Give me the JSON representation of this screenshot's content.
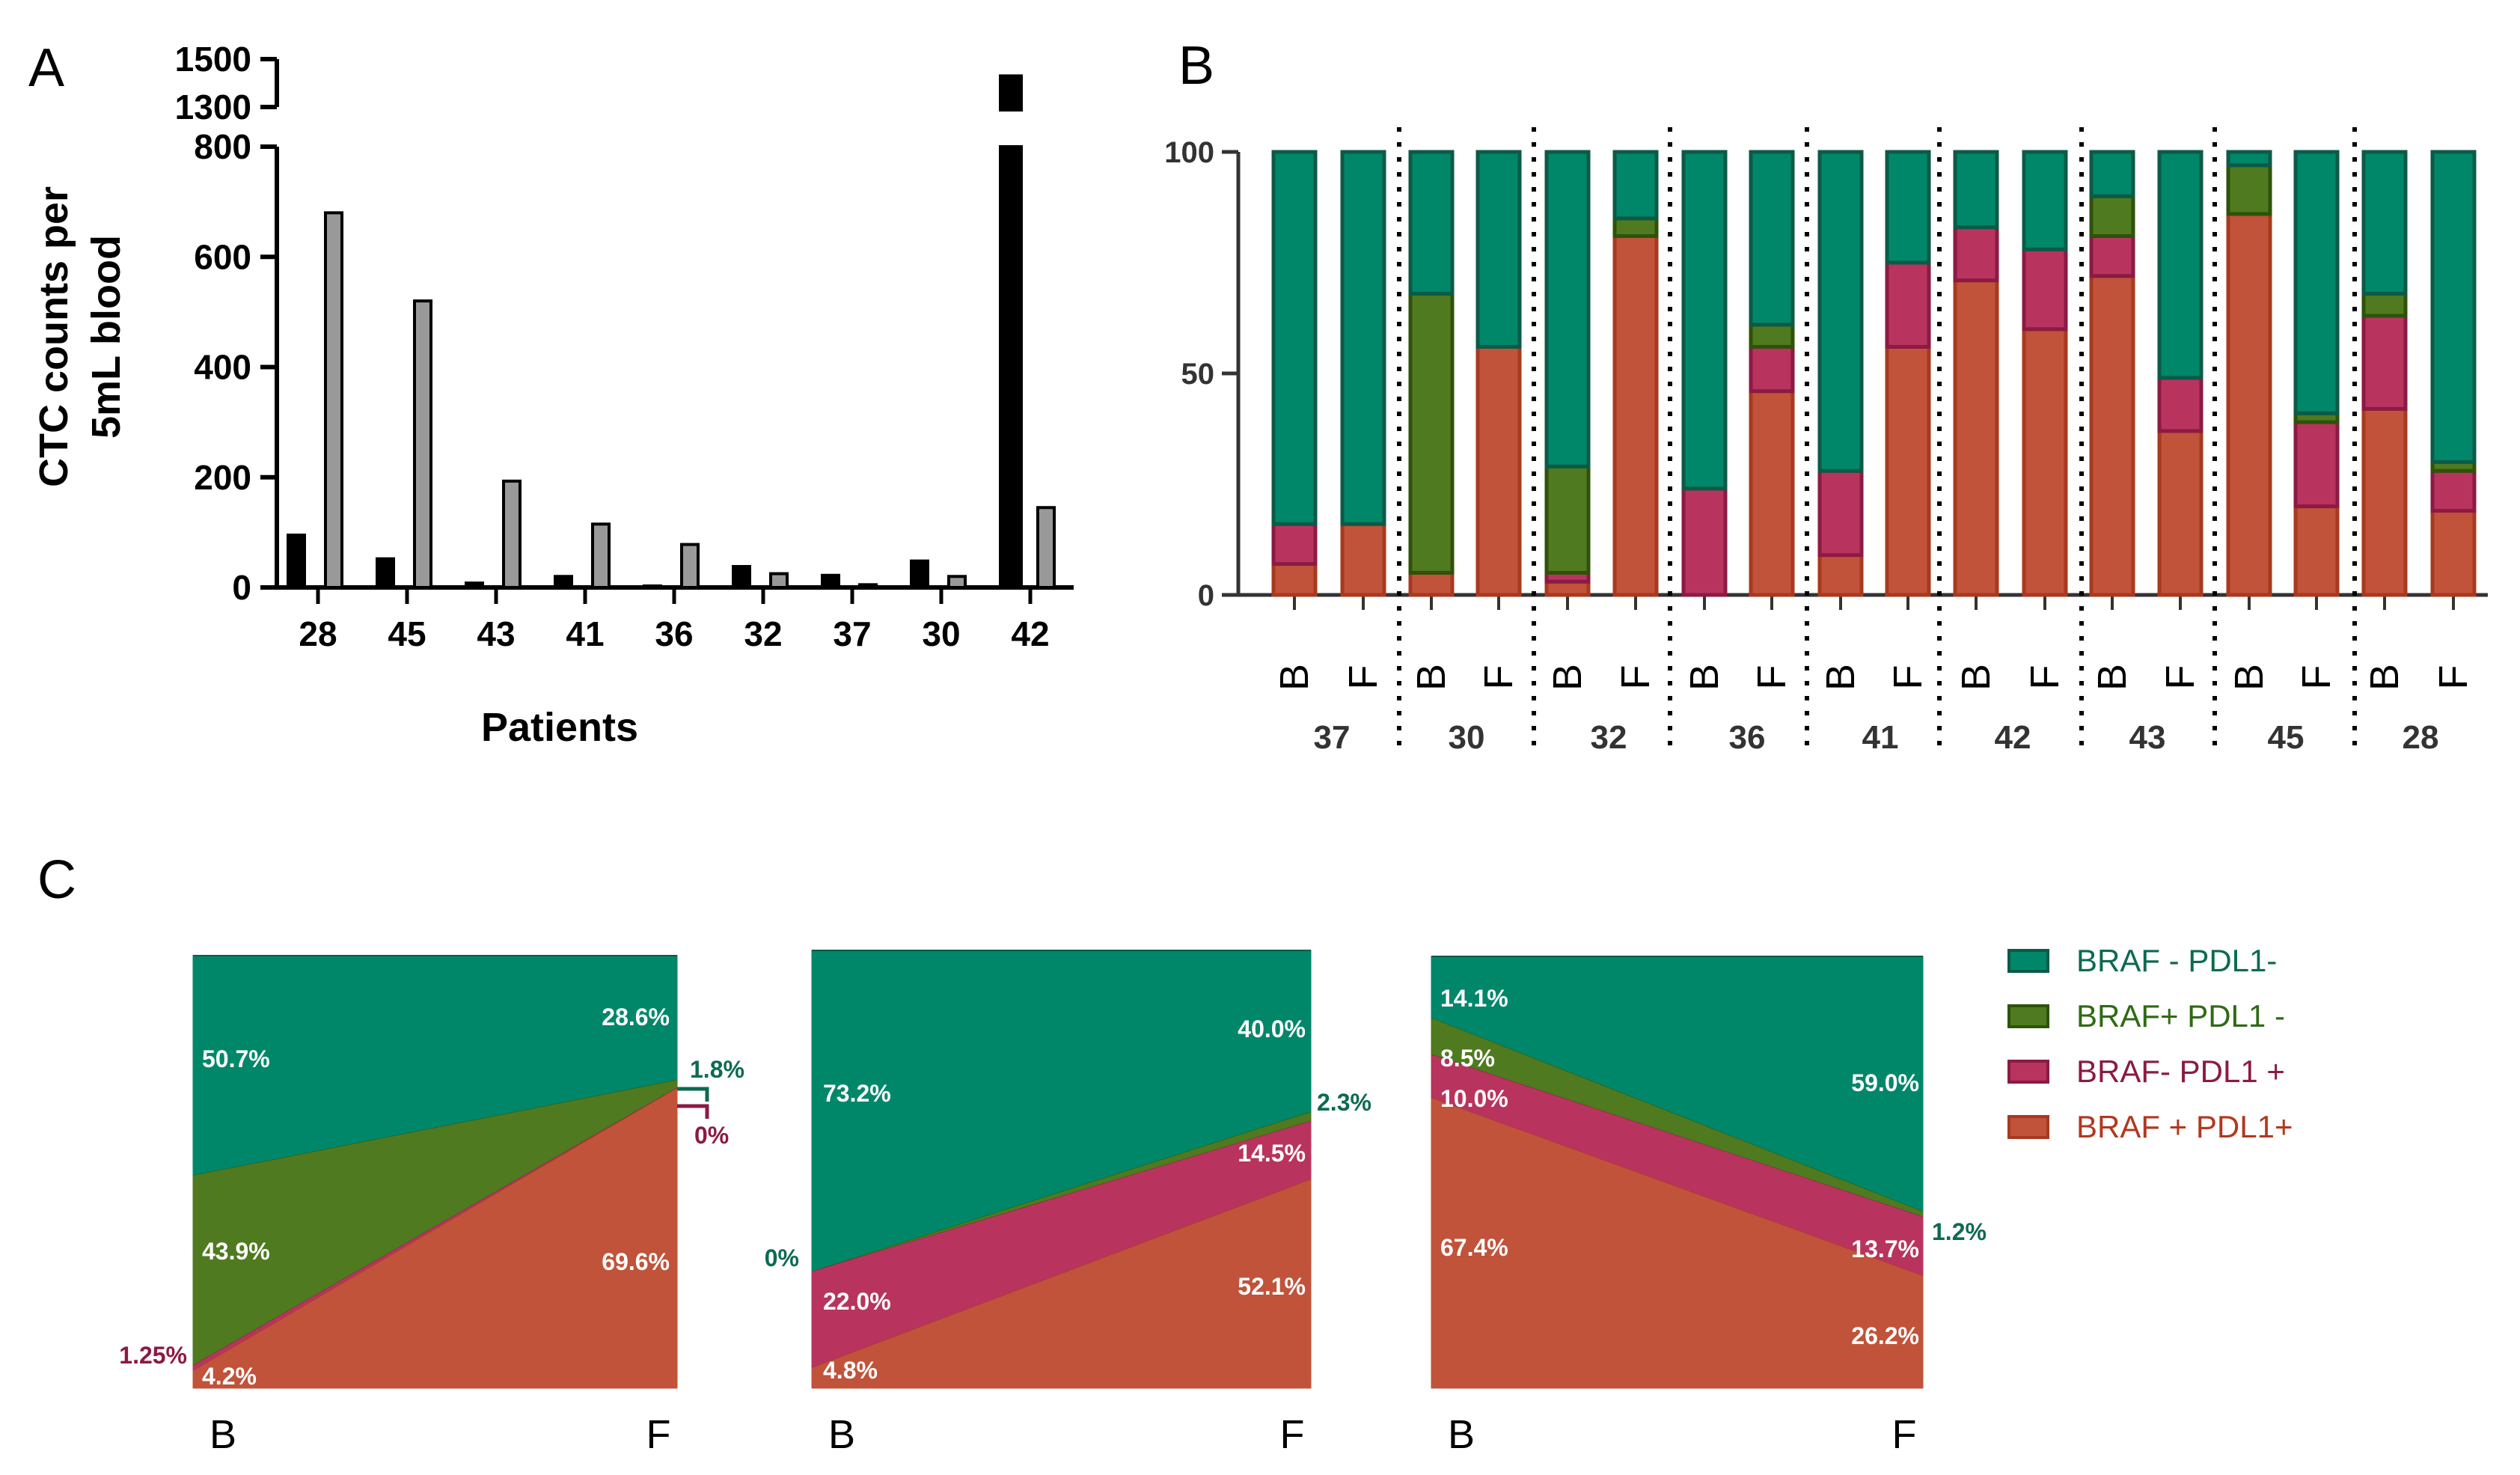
{
  "colors": {
    "teal": "#00876a",
    "green": "#4f7a1f",
    "magenta": "#b8345e",
    "orange": "#c0533a",
    "teal_border": "#0c5a46",
    "green_border": "#2f520a",
    "magenta_border": "#8b1a44",
    "orange_border": "#a8391f",
    "label_teal": "#0c6a52",
    "label_magenta": "#8b1a44",
    "legend_text_teal": "#0c6a52",
    "legend_text_green": "#2f6a14",
    "legend_text_magenta": "#8b1a44",
    "legend_text_orange": "#b0391f"
  },
  "panel_letters": {
    "a": "A",
    "b": "B",
    "c": "C"
  },
  "chart_data": [
    {
      "id": "A",
      "type": "bar",
      "title": "",
      "xlabel": "Patients",
      "ylabel": "CTC counts per 5mL blood",
      "ylabel_lines": [
        "CTC counts per",
        "5mL blood"
      ],
      "y_ticks_lower": [
        0,
        200,
        400,
        600,
        800
      ],
      "y_ticks_upper": [
        1300,
        1500
      ],
      "ylim_lower": [
        0,
        800
      ],
      "ylim_upper": [
        1300,
        1500
      ],
      "categories": [
        "28",
        "45",
        "43",
        "41",
        "36",
        "32",
        "37",
        "30",
        "42"
      ],
      "series": [
        {
          "name": "B",
          "color": "#000000",
          "values": [
            95,
            52,
            8,
            20,
            0,
            38,
            22,
            48,
            1430
          ]
        },
        {
          "name": "F",
          "color": "#999999",
          "values": [
            680,
            520,
            193,
            115,
            78,
            25,
            5,
            20,
            145
          ]
        }
      ]
    },
    {
      "id": "B",
      "type": "bar",
      "stacked": true,
      "ylim": [
        0,
        100
      ],
      "y_ticks": [
        0,
        50,
        100
      ],
      "timepoint_labels": [
        "B",
        "F"
      ],
      "patients": [
        "37",
        "30",
        "32",
        "36",
        "41",
        "42",
        "43",
        "45",
        "28"
      ],
      "series": [
        {
          "name": "BRAF + PDL1+",
          "color": "#c0533a",
          "values": [
            7,
            16,
            5,
            56,
            3,
            81,
            0,
            46,
            9,
            56,
            71,
            60,
            72,
            37,
            86,
            20,
            42,
            19
          ]
        },
        {
          "name": "BRAF- PDL1 +",
          "color": "#b8345e",
          "values": [
            9,
            0,
            0,
            0,
            2,
            0,
            24,
            10,
            19,
            19,
            12,
            18,
            9,
            12,
            0,
            19,
            21,
            9
          ]
        },
        {
          "name": "BRAF+ PDL1 -",
          "color": "#4f7a1f",
          "values": [
            0,
            0,
            63,
            0,
            24,
            4,
            0,
            5,
            0,
            0,
            0,
            0,
            9,
            0,
            11,
            2,
            5,
            2
          ]
        },
        {
          "name": "BRAF - PDL1-",
          "color": "#00876a",
          "values": [
            84,
            84,
            32,
            44,
            71,
            15,
            76,
            39,
            72,
            25,
            17,
            22,
            10,
            51,
            3,
            59,
            32,
            70
          ]
        }
      ]
    },
    {
      "id": "C",
      "type": "area",
      "x": [
        "B",
        "F"
      ],
      "panels": [
        {
          "series": [
            {
              "name": "BRAF + PDL1+",
              "values": [
                4.2,
                69.6
              ],
              "labels": [
                "4.2%",
                "69.6%"
              ]
            },
            {
              "name": "BRAF- PDL1 +",
              "values": [
                1.25,
                0.0
              ],
              "labels": [
                "1.25%",
                "0%"
              ]
            },
            {
              "name": "BRAF+ PDL1 -",
              "values": [
                43.9,
                1.8
              ],
              "labels": [
                "43.9%",
                "1.8%"
              ]
            },
            {
              "name": "BRAF - PDL1-",
              "values": [
                50.7,
                28.6
              ],
              "labels": [
                "50.7%",
                "28.6%"
              ]
            }
          ]
        },
        {
          "series": [
            {
              "name": "BRAF + PDL1+",
              "values": [
                4.8,
                52.1
              ],
              "labels": [
                "4.8%",
                "52.1%"
              ]
            },
            {
              "name": "BRAF- PDL1 +",
              "values": [
                22.0,
                14.5
              ],
              "labels": [
                "22.0%",
                "14.5%"
              ]
            },
            {
              "name": "BRAF+ PDL1 -",
              "values": [
                0.0,
                2.3
              ],
              "labels": [
                "0%",
                "2.3%"
              ]
            },
            {
              "name": "BRAF - PDL1-",
              "values": [
                73.2,
                40.0
              ],
              "labels": [
                "73.2%",
                "40.0%"
              ]
            }
          ]
        },
        {
          "series": [
            {
              "name": "BRAF + PDL1+",
              "values": [
                67.4,
                26.2
              ],
              "labels": [
                "67.4%",
                "26.2%"
              ]
            },
            {
              "name": "BRAF- PDL1 +",
              "values": [
                10.0,
                13.7
              ],
              "labels": [
                "10.0%",
                "13.7%"
              ]
            },
            {
              "name": "BRAF+ PDL1 -",
              "values": [
                8.5,
                1.2
              ],
              "labels": [
                "8.5%",
                "1.2%"
              ]
            },
            {
              "name": "BRAF - PDL1-",
              "values": [
                14.1,
                59.0
              ],
              "labels": [
                "14.1%",
                "59.0%"
              ]
            }
          ]
        }
      ],
      "legend": [
        {
          "label": "BRAF - PDL1-",
          "color": "#00876a"
        },
        {
          "label": "BRAF+ PDL1 -",
          "color": "#4f7a1f"
        },
        {
          "label": "BRAF- PDL1 +",
          "color": "#b8345e"
        },
        {
          "label": "BRAF + PDL1+",
          "color": "#c0533a"
        }
      ]
    }
  ]
}
